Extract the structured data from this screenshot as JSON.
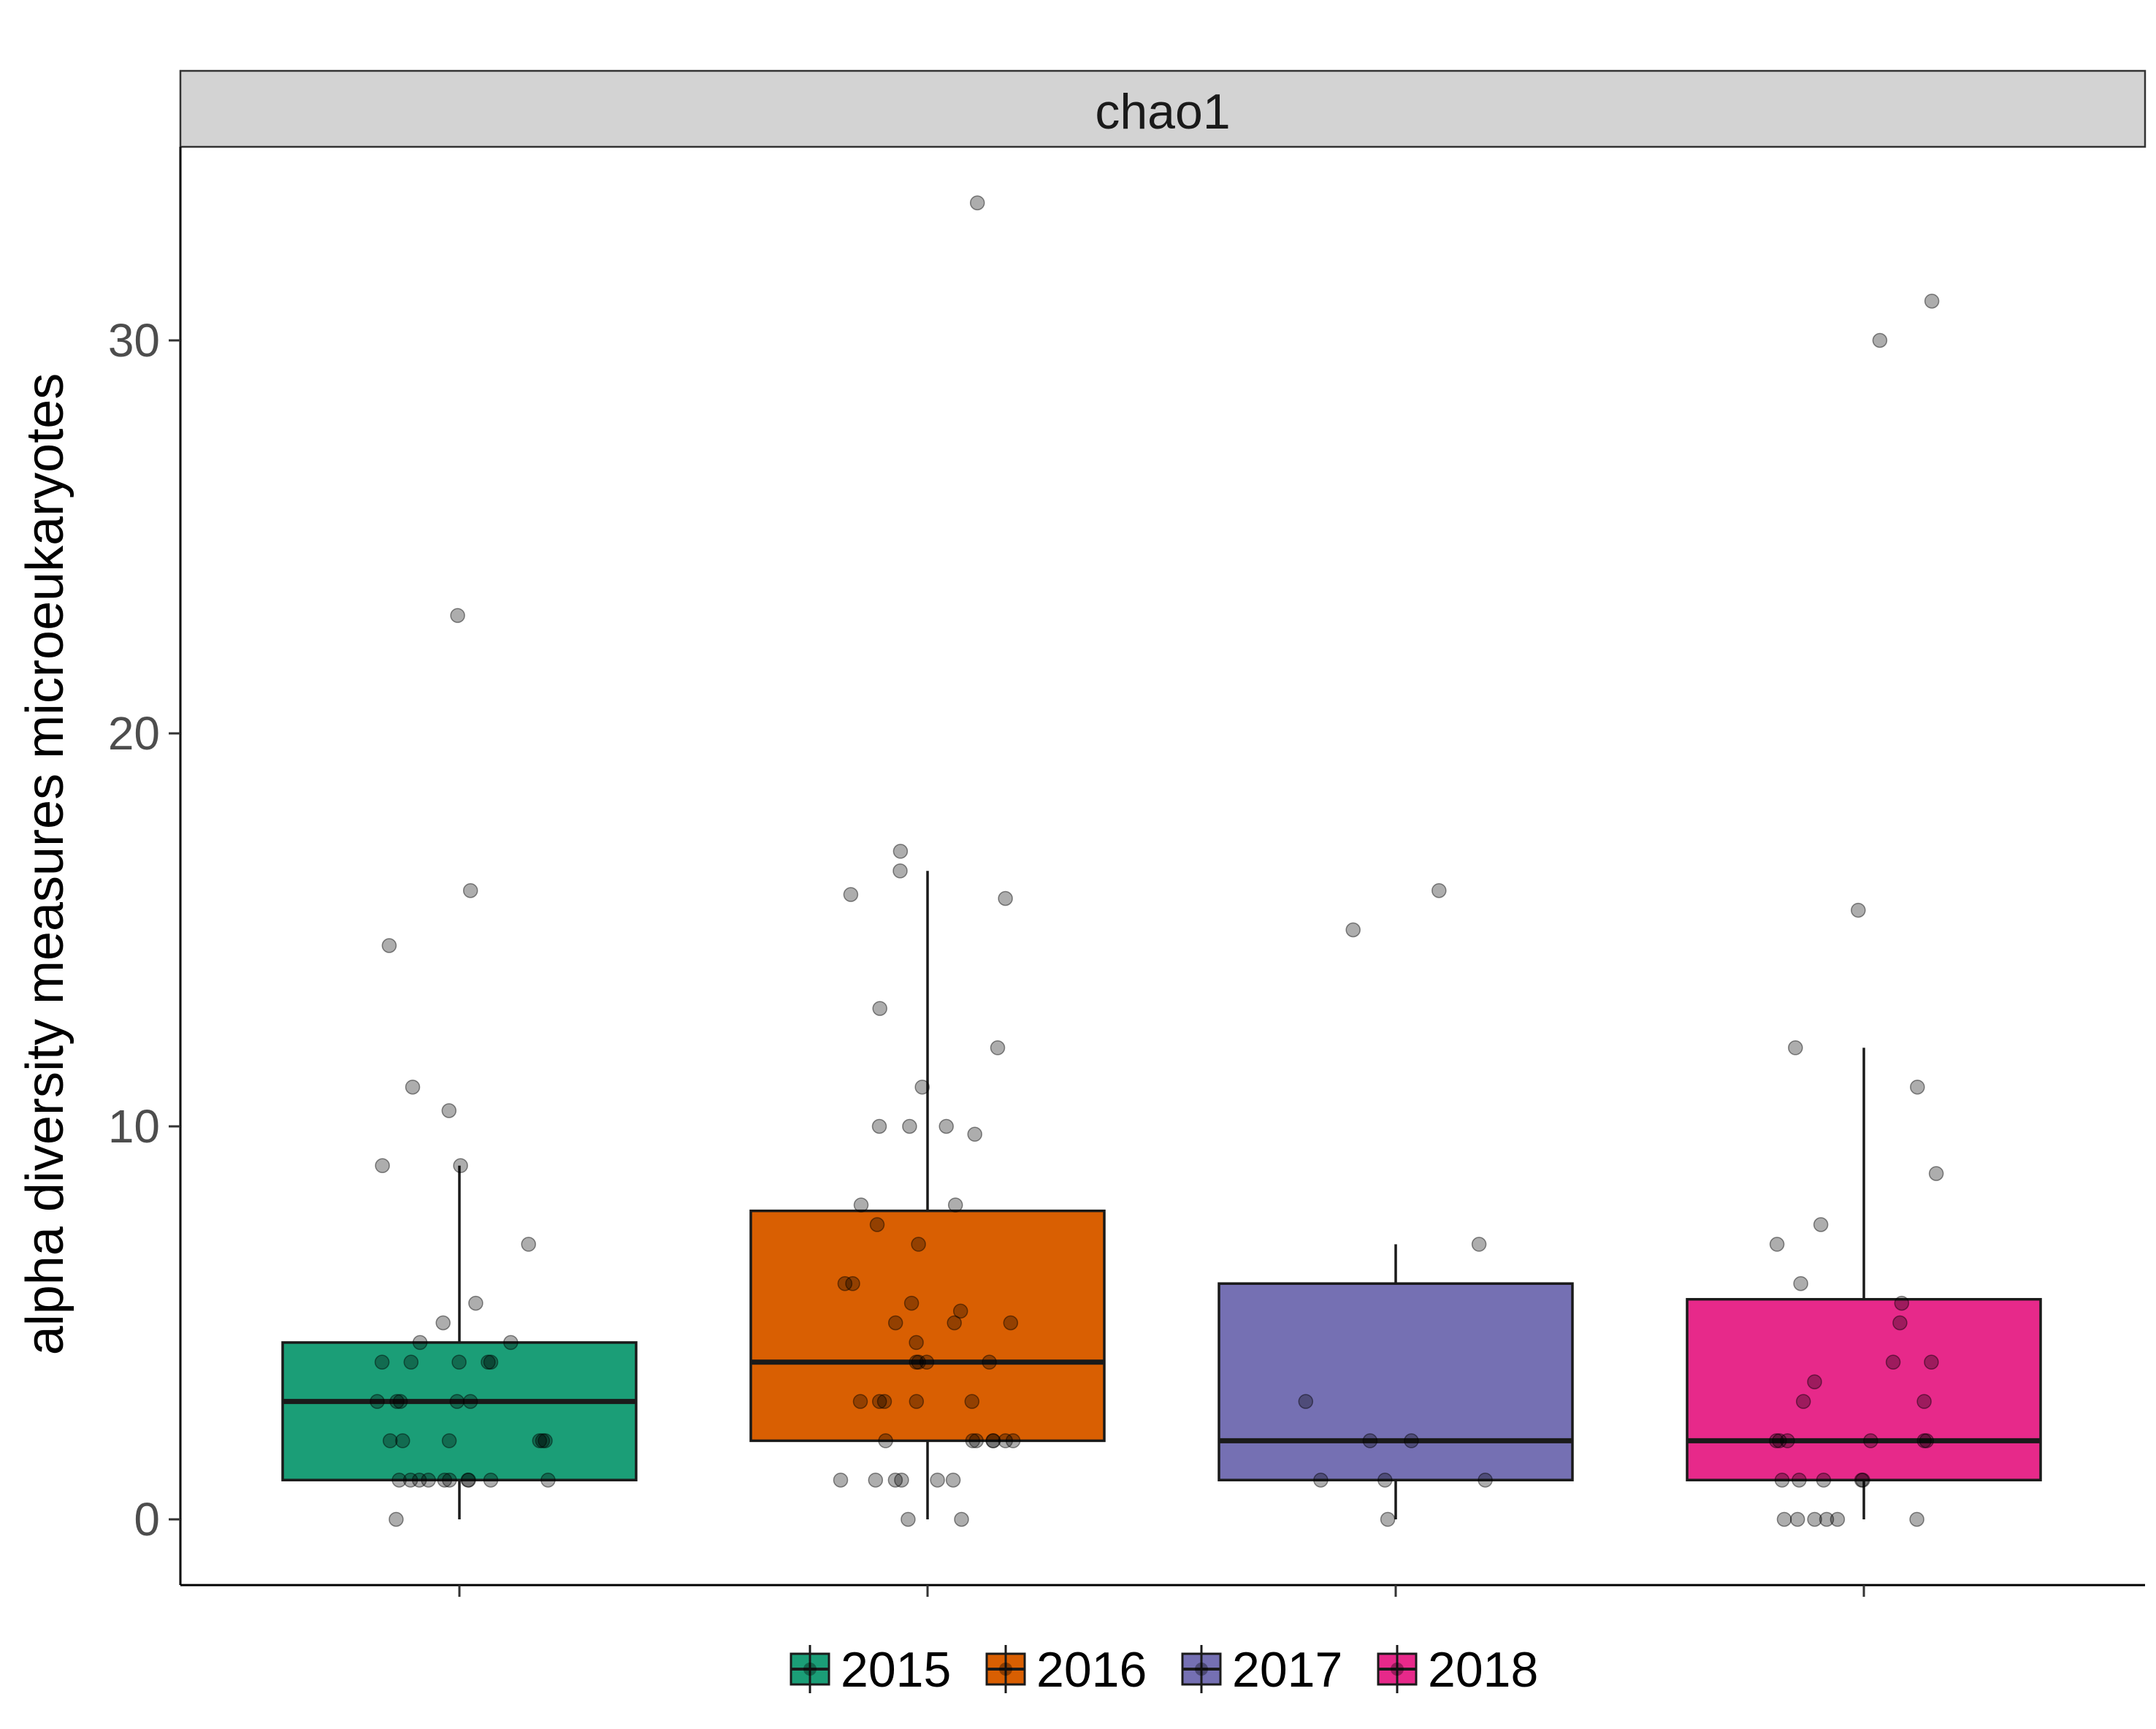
{
  "chart_data": {
    "type": "box",
    "facet_label": "chao1",
    "xlabel": "",
    "ylabel": "alpha diversity measures microeukaryotes",
    "ylim": [
      -1.7,
      35
    ],
    "yticks": [
      0,
      10,
      20,
      30
    ],
    "ytick_labels": [
      "0",
      "10",
      "20",
      "30"
    ],
    "grid": false,
    "legend_position": "bottom",
    "series": [
      {
        "name": "2015",
        "color": "#1B9E77",
        "box": {
          "q1": 1,
          "median": 3,
          "q3": 4.5,
          "whisker_low": 0,
          "whisker_high": 9
        },
        "points": [
          23,
          16,
          14.6,
          11,
          10.4,
          9,
          9,
          7,
          5.5,
          5,
          4.5,
          4.5,
          4,
          4,
          4,
          4,
          4,
          3,
          3,
          3,
          3,
          3,
          2,
          2,
          2,
          2,
          2,
          2,
          1,
          1,
          1,
          1,
          1,
          1,
          1,
          1,
          1,
          1,
          0
        ]
      },
      {
        "name": "2016",
        "color": "#D95F02",
        "box": {
          "q1": 2,
          "median": 4,
          "q3": 7.85,
          "whisker_low": 0,
          "whisker_high": 16.5
        },
        "points": [
          33.5,
          17,
          16.5,
          15.9,
          15.8,
          13,
          12,
          11,
          10,
          10,
          10,
          9.8,
          8,
          8,
          7.5,
          7,
          6,
          6,
          5.5,
          5.3,
          5,
          5,
          5,
          4.5,
          4,
          4,
          4,
          4,
          3,
          3,
          3,
          3,
          3,
          2,
          2,
          2,
          2,
          2,
          2,
          2,
          1,
          1,
          1,
          1,
          1,
          1,
          0,
          0
        ]
      },
      {
        "name": "2017",
        "color": "#7570B3",
        "box": {
          "q1": 1,
          "median": 2,
          "q3": 6,
          "whisker_low": 0,
          "whisker_high": 7
        },
        "points": [
          16,
          15,
          7,
          3,
          2,
          2,
          1,
          1,
          1,
          0
        ]
      },
      {
        "name": "2018",
        "color": "#E7298A",
        "box": {
          "q1": 1,
          "median": 2,
          "q3": 5.6,
          "whisker_low": 0,
          "whisker_high": 12
        },
        "points": [
          31,
          30,
          15.5,
          12,
          11,
          8.8,
          7.5,
          7,
          6,
          5.5,
          5,
          4,
          4,
          3.5,
          3,
          3,
          2,
          2,
          2,
          2,
          2,
          2,
          1,
          1,
          1,
          1,
          1,
          0,
          0,
          0,
          0,
          0,
          0
        ]
      }
    ]
  }
}
